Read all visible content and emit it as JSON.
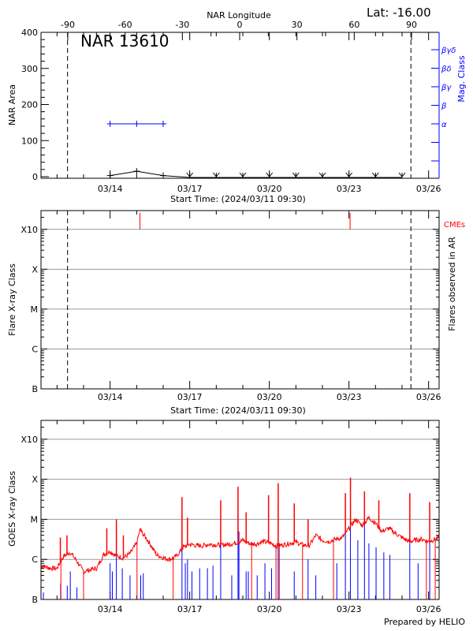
{
  "chart_data": [
    {
      "type": "line",
      "title": "NAR 13610",
      "corner_label": "Lat: -16.00",
      "top_axis_label": "NAR Longitude",
      "top_ticks": [
        "-90",
        "-60",
        "-30",
        "0",
        "30",
        "60",
        "90"
      ],
      "xlabel": "Start Time: (2024/03/11 09:30)",
      "x_tick_labels": [
        "03/14",
        "03/17",
        "03/20",
        "03/23",
        "03/26"
      ],
      "xlim": [
        "03/11 09:30",
        "03/26 09:30"
      ],
      "ylabel": "NAR Area",
      "ylim": [
        0,
        400
      ],
      "y_ticks": [
        "0",
        "100",
        "200",
        "300",
        "400"
      ],
      "limb_lines": [
        "03/12 09:30",
        "03/25 08:00"
      ],
      "y2label": "Mag. Class",
      "y2_ticks": [
        "",
        "",
        "α",
        "β",
        "βγ",
        "βδ",
        "βγδ"
      ],
      "series": [
        {
          "color": "#000000",
          "points": [
            [
              "03/14 00:00",
              3
            ],
            [
              "03/15 00:00",
              15
            ],
            [
              "03/16 00:00",
              3
            ],
            [
              "03/17 00:00",
              0
            ],
            [
              "03/18 00:00",
              0
            ],
            [
              "03/19 00:00",
              0
            ],
            [
              "03/20 00:00",
              0
            ],
            [
              "03/21 00:00",
              0
            ],
            [
              "03/22 00:00",
              0
            ],
            [
              "03/23 00:00",
              0
            ],
            [
              "03/24 00:00",
              0
            ],
            [
              "03/25 00:00",
              0
            ]
          ]
        },
        {
          "color": "#0000ff",
          "axis": "right",
          "points": [
            [
              "03/14 00:00",
              "α"
            ],
            [
              "03/15 00:00",
              "α"
            ],
            [
              "03/16 00:00",
              "α"
            ]
          ]
        }
      ]
    },
    {
      "type": "scatter",
      "xlabel": "Start Time: (2024/03/11 09:30)",
      "x_tick_labels": [
        "03/14",
        "03/17",
        "03/20",
        "03/23",
        "03/26"
      ],
      "ylabel": "Flare X-ray Class",
      "y2label": "Flares observed in AR",
      "y_ticks": [
        "B",
        "C",
        "M",
        "X",
        "X10"
      ],
      "grid": true,
      "limb_lines": [
        "03/12 09:30",
        "03/25 08:00"
      ],
      "cme_label": "CMEs",
      "cme_color": "#ff0000",
      "cmes": [
        "03/15 03:00",
        "03/23 01:00"
      ],
      "flares": []
    },
    {
      "type": "line",
      "xlabel": "",
      "x_tick_labels": [
        "03/14",
        "03/17",
        "03/20",
        "03/23",
        "03/26"
      ],
      "ylabel": "GOES X-ray Class",
      "y_ticks": [
        "B",
        "C",
        "M",
        "X",
        "X10"
      ],
      "grid": true,
      "footer": "Prepared by HELIO",
      "long_channel_color": "#ff0000",
      "short_channel_color": "#0000ff",
      "long_channel": [
        [
          "03/11 09:30",
          7e-07
        ],
        [
          "03/11 18:00",
          6e-07
        ],
        [
          "03/12 00:00",
          6e-07
        ],
        [
          "03/12 06:00",
          1.2e-06
        ],
        [
          "03/12 12:00",
          1.5e-06
        ],
        [
          "03/12 18:00",
          9e-07
        ],
        [
          "03/13 00:00",
          5e-07
        ],
        [
          "03/13 06:00",
          5.5e-07
        ],
        [
          "03/13 12:00",
          6e-07
        ],
        [
          "03/13 18:00",
          1.3e-06
        ],
        [
          "03/14 00:00",
          1.6e-06
        ],
        [
          "03/14 06:00",
          1.2e-06
        ],
        [
          "03/14 12:00",
          1.1e-06
        ],
        [
          "03/14 18:00",
          1.4e-06
        ],
        [
          "03/15 00:00",
          2.5e-06
        ],
        [
          "03/15 03:00",
          5.5e-06
        ],
        [
          "03/15 12:00",
          2.5e-06
        ],
        [
          "03/15 18:00",
          1.3e-06
        ],
        [
          "03/16 00:00",
          1.1e-06
        ],
        [
          "03/16 06:00",
          1e-06
        ],
        [
          "03/16 12:00",
          1.2e-06
        ],
        [
          "03/16 18:00",
          2e-06
        ],
        [
          "03/17 00:00",
          2.4e-06
        ],
        [
          "03/17 06:00",
          2.2e-06
        ],
        [
          "03/17 12:00",
          2.2e-06
        ],
        [
          "03/17 18:00",
          2.4e-06
        ],
        [
          "03/18 00:00",
          2.3e-06
        ],
        [
          "03/18 06:00",
          2.3e-06
        ],
        [
          "03/18 12:00",
          2.4e-06
        ],
        [
          "03/18 18:00",
          2.6e-06
        ],
        [
          "03/19 00:00",
          3e-06
        ],
        [
          "03/19 06:00",
          2.5e-06
        ],
        [
          "03/19 12:00",
          2.4e-06
        ],
        [
          "03/19 18:00",
          2.8e-06
        ],
        [
          "03/20 00:00",
          2.6e-06
        ],
        [
          "03/20 06:00",
          2.2e-06
        ],
        [
          "03/20 12:00",
          2.3e-06
        ],
        [
          "03/20 18:00",
          2.5e-06
        ],
        [
          "03/21 00:00",
          2.7e-06
        ],
        [
          "03/21 06:00",
          2.3e-06
        ],
        [
          "03/21 12:00",
          2.2e-06
        ],
        [
          "03/21 18:00",
          4e-06
        ],
        [
          "03/22 00:00",
          3e-06
        ],
        [
          "03/22 06:00",
          2.8e-06
        ],
        [
          "03/22 12:00",
          3.2e-06
        ],
        [
          "03/22 18:00",
          3.5e-06
        ],
        [
          "03/23 00:00",
          6e-06
        ],
        [
          "03/23 06:00",
          1e-05
        ],
        [
          "03/23 12:00",
          7e-06
        ],
        [
          "03/23 18:00",
          1.1e-05
        ],
        [
          "03/24 00:00",
          8e-06
        ],
        [
          "03/24 06:00",
          5e-06
        ],
        [
          "03/24 12:00",
          6e-06
        ],
        [
          "03/24 18:00",
          4.5e-06
        ],
        [
          "03/25 00:00",
          3.5e-06
        ],
        [
          "03/25 06:00",
          2.8e-06
        ],
        [
          "03/25 12:00",
          3e-06
        ],
        [
          "03/25 18:00",
          3.2e-06
        ],
        [
          "03/26 00:00",
          2.8e-06
        ],
        [
          "03/26 06:00",
          3.2e-06
        ],
        [
          "03/26 09:30",
          3.5e-06
        ]
      ],
      "long_channel_peaks": [
        [
          "03/12 03:00",
          3.5e-06
        ],
        [
          "03/12 09:00",
          4e-06
        ],
        [
          "03/13 21:00",
          6e-06
        ],
        [
          "03/14 05:40",
          1e-05
        ],
        [
          "03/14 12:00",
          4e-06
        ],
        [
          "03/15 03:40",
          6e-06
        ],
        [
          "03/16 17:00",
          3.6e-05
        ],
        [
          "03/16 22:00",
          1.1e-05
        ],
        [
          "03/18 04:00",
          3e-05
        ],
        [
          "03/18 19:40",
          6.5e-05
        ],
        [
          "03/19 03:00",
          1.5e-05
        ],
        [
          "03/19 23:15",
          4e-05
        ],
        [
          "03/20 08:00",
          8e-05
        ],
        [
          "03/20 22:30",
          2.5e-05
        ],
        [
          "03/21 11:00",
          1e-05
        ],
        [
          "03/22 20:45",
          4.5e-05
        ],
        [
          "03/23 01:20",
          0.00011
        ],
        [
          "03/23 14:00",
          5e-05
        ],
        [
          "03/24 03:00",
          3e-05
        ],
        [
          "03/25 07:00",
          4.5e-05
        ],
        [
          "03/26 01:00",
          2.7e-05
        ]
      ],
      "long_channel_dropouts": [
        "03/12 03:30",
        "03/13 00:00",
        "03/15 00:20",
        "03/16 09:00",
        "03/19 08:00",
        "03/20 06:00",
        "03/20 09:00",
        "03/21 06:00",
        "03/22 10:00",
        "03/25 22:00",
        "03/26 06:00"
      ],
      "short_channel_peaks": [
        [
          "03/11 11:40",
          1.5e-07
        ],
        [
          "03/12 03:15",
          2.5e-07
        ],
        [
          "03/12 09:15",
          2.2e-07
        ],
        [
          "03/12 12:00",
          5e-07
        ],
        [
          "03/12 18:00",
          2e-07
        ],
        [
          "03/14 00:00",
          8e-07
        ],
        [
          "03/14 02:00",
          5e-07
        ],
        [
          "03/14 05:40",
          1.2e-06
        ],
        [
          "03/14 11:00",
          6e-07
        ],
        [
          "03/14 18:00",
          4e-07
        ],
        [
          "03/15 03:40",
          4e-07
        ],
        [
          "03/15 06:00",
          4.5e-07
        ],
        [
          "03/16 17:00",
          1.2e-05
        ],
        [
          "03/16 20:00",
          8e-07
        ],
        [
          "03/16 22:00",
          1e-06
        ],
        [
          "03/17 02:00",
          5e-07
        ],
        [
          "03/17 09:00",
          6e-07
        ],
        [
          "03/17 16:00",
          6e-07
        ],
        [
          "03/17 21:00",
          7e-07
        ],
        [
          "03/18 04:00",
          7e-06
        ],
        [
          "03/18 14:00",
          4e-07
        ],
        [
          "03/18 19:40",
          2e-05
        ],
        [
          "03/18 20:30",
          5e-06
        ],
        [
          "03/19 03:00",
          5e-07
        ],
        [
          "03/19 05:00",
          5e-07
        ],
        [
          "03/19 13:00",
          4e-07
        ],
        [
          "03/19 20:00",
          8e-07
        ],
        [
          "03/20 02:00",
          6e-07
        ],
        [
          "03/20 08:00",
          2.5e-05
        ],
        [
          "03/20 22:30",
          5e-07
        ],
        [
          "03/21 11:00",
          1e-06
        ],
        [
          "03/21 18:00",
          4e-07
        ],
        [
          "03/22 13:00",
          8e-07
        ],
        [
          "03/22 20:45",
          1e-05
        ],
        [
          "03/23 01:20",
          2e-05
        ],
        [
          "03/23 08:00",
          3e-06
        ],
        [
          "03/23 14:00",
          1.2e-05
        ],
        [
          "03/23 18:00",
          2.5e-06
        ],
        [
          "03/24 00:30",
          2e-06
        ],
        [
          "03/24 07:30",
          1.5e-06
        ],
        [
          "03/24 13:00",
          1.3e-06
        ],
        [
          "03/25 07:00",
          1.2e-05
        ],
        [
          "03/25 14:30",
          8e-07
        ],
        [
          "03/26 01:00",
          3e-06
        ]
      ]
    }
  ]
}
